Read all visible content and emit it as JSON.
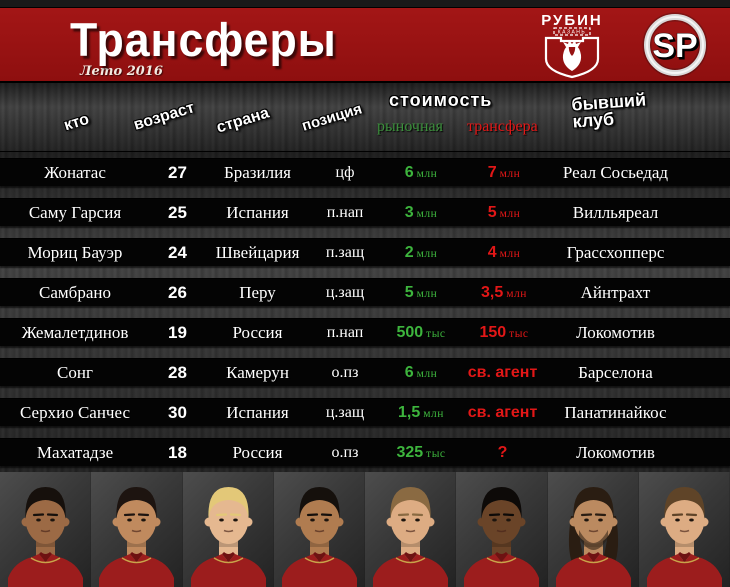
{
  "header": {
    "title": "Трансферы",
    "subtitle": "Лето 2016",
    "rubin_logo": {
      "name": "РУБИН",
      "city": "КАЗАНЬ"
    },
    "sp_logo": "SP"
  },
  "table": {
    "columns": {
      "who": "кто",
      "age": "возраст",
      "country": "страна",
      "position": "позиция",
      "cost": "стоимость",
      "market": "рыночная",
      "transfer": "трансфера",
      "former_club_line1": "бывший",
      "former_club_line2": "клуб"
    },
    "rows": [
      {
        "name": "Жонатас",
        "age": "27",
        "country": "Бразилия",
        "position": "цф",
        "market": {
          "num": "6",
          "unit": "млн"
        },
        "transfer": {
          "num": "7",
          "unit": "млн"
        },
        "club": "Реал Сосьедад"
      },
      {
        "name": "Саму Гарсия",
        "age": "25",
        "country": "Испания",
        "position": "п.нап",
        "market": {
          "num": "3",
          "unit": "млн"
        },
        "transfer": {
          "num": "5",
          "unit": "млн"
        },
        "club": "Вилльяреал"
      },
      {
        "name": "Мориц Бауэр",
        "age": "24",
        "country": "Швейцария",
        "position": "п.защ",
        "market": {
          "num": "2",
          "unit": "млн"
        },
        "transfer": {
          "num": "4",
          "unit": "млн"
        },
        "club": "Грассхопперс"
      },
      {
        "name": "Самбрано",
        "age": "26",
        "country": "Перу",
        "position": "ц.защ",
        "market": {
          "num": "5",
          "unit": "млн"
        },
        "transfer": {
          "num": "3,5",
          "unit": "млн"
        },
        "club": "Айнтрахт"
      },
      {
        "name": "Жемалетдинов",
        "age": "19",
        "country": "Россия",
        "position": "п.нап",
        "market": {
          "num": "500",
          "unit": "тыс"
        },
        "transfer": {
          "num": "150",
          "unit": "тыс"
        },
        "club": "Локомотив"
      },
      {
        "name": "Сонг",
        "age": "28",
        "country": "Камерун",
        "position": "о.пз",
        "market": {
          "num": "6",
          "unit": "млн"
        },
        "transfer": {
          "num": "св. агент",
          "unit": ""
        },
        "club": "Барселона"
      },
      {
        "name": "Серхио Санчес",
        "age": "30",
        "country": "Испания",
        "position": "ц.защ",
        "market": {
          "num": "1,5",
          "unit": "млн"
        },
        "transfer": {
          "num": "св. агент",
          "unit": ""
        },
        "club": "Панатинайкос"
      },
      {
        "name": "Махатадзе",
        "age": "18",
        "country": "Россия",
        "position": "о.пз",
        "market": {
          "num": "325",
          "unit": "тыс"
        },
        "transfer": {
          "num": "?",
          "unit": ""
        },
        "club": "Локомотив"
      }
    ]
  },
  "players": [
    {
      "name": "Жонатас",
      "skin": "#9c6a45",
      "hair": "#16100c",
      "long": false
    },
    {
      "name": "Саму Гарсия",
      "skin": "#c08a5e",
      "hair": "#1d1410",
      "long": false
    },
    {
      "name": "Мориц Бауэр",
      "skin": "#e5b890",
      "hair": "#e3c878",
      "long": false
    },
    {
      "name": "Самбрано",
      "skin": "#b07c50",
      "hair": "#15100c",
      "long": false
    },
    {
      "name": "Жемалетдинов",
      "skin": "#ddac83",
      "hair": "#8a6a42",
      "long": false
    },
    {
      "name": "Сонг",
      "skin": "#6a4428",
      "hair": "#0d0a08",
      "long": false
    },
    {
      "name": "Серхио Санчес",
      "skin": "#bb8a60",
      "hair": "#2a1d12",
      "long": true
    },
    {
      "name": "Махатадзе",
      "skin": "#ddac83",
      "hair": "#5f4428",
      "long": false
    }
  ],
  "colors": {
    "header_red": "#8e0f0f",
    "header_red_light": "#a31616",
    "market_green": "#3db53d",
    "market_green_dark": "#3c8f3c",
    "transfer_red": "#e21717",
    "jersey_red": "#9c1d1d"
  }
}
